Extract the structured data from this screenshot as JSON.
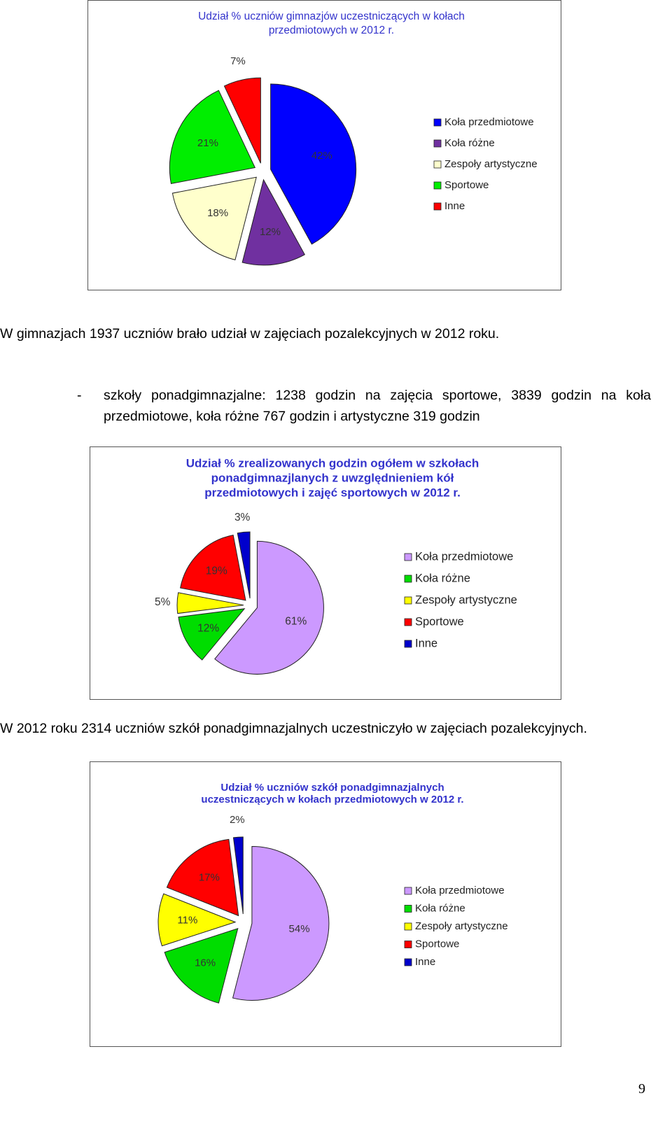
{
  "paragraphs": [
    "W gimnazjach 1937 uczniów brało udział w zajęciach pozalekcyjnych w 2012 roku.",
    {
      "bullet": "-",
      "text": "szkoły ponadgimnazjalne: 1238 godzin na zajęcia sportowe, 3839 godzin na koła przedmiotowe, koła różne 767 godzin i artystyczne 319 godzin"
    },
    "W 2012 roku 2314 uczniów szkół ponadgimnazjalnych uczestniczyło w zajęciach pozalekcyjnych."
  ],
  "page_number": "9",
  "chart_data": [
    {
      "type": "pie",
      "title": [
        "Udział % uczniów gimnazjów  uczestniczących w kołach",
        "przedmiotowych w 2012 r."
      ],
      "categories": [
        "Koła przedmiotowe",
        "Koła różne",
        "Zespoły artystyczne",
        "Sportowe",
        "Inne"
      ],
      "values": [
        42,
        12,
        18,
        21,
        7
      ],
      "value_labels": [
        "42%",
        "12%",
        "18%",
        "21%",
        "7%"
      ],
      "colors": [
        "#0000ff",
        "#7030a0",
        "#ffffcc",
        "#00ee00",
        "#ff0000"
      ]
    },
    {
      "type": "pie",
      "title": [
        "Udział % zrealizowanych godzin ogółem w szkołach",
        "ponadgimnazjlanych z uwzględnieniem kół",
        "przedmiotowych i zajęć sportowych w 2012 r."
      ],
      "categories": [
        "Koła przedmiotowe",
        "Koła różne",
        "Zespoły artystyczne",
        "Sportowe",
        "Inne"
      ],
      "values": [
        61,
        12,
        5,
        19,
        3
      ],
      "value_labels": [
        "61%",
        "12%",
        "5%",
        "19%",
        "3%"
      ],
      "colors": [
        "#cc99ff",
        "#00dd00",
        "#ffff00",
        "#ff0000",
        "#0000cc"
      ]
    },
    {
      "type": "pie",
      "title": [
        "Udział % uczniów szkół ponadgimnazjalnych",
        "uczestniczących w kołach przedmiotowych w 2012 r."
      ],
      "categories": [
        "Koła przedmiotowe",
        "Koła różne",
        "Zespoły artystyczne",
        "Sportowe",
        "Inne"
      ],
      "values": [
        54,
        16,
        11,
        17,
        2
      ],
      "value_labels": [
        "54%",
        "16%",
        "11%",
        "17%",
        "2%"
      ],
      "colors": [
        "#cc99ff",
        "#00dd00",
        "#ffff00",
        "#ff0000",
        "#0000cc"
      ]
    }
  ]
}
